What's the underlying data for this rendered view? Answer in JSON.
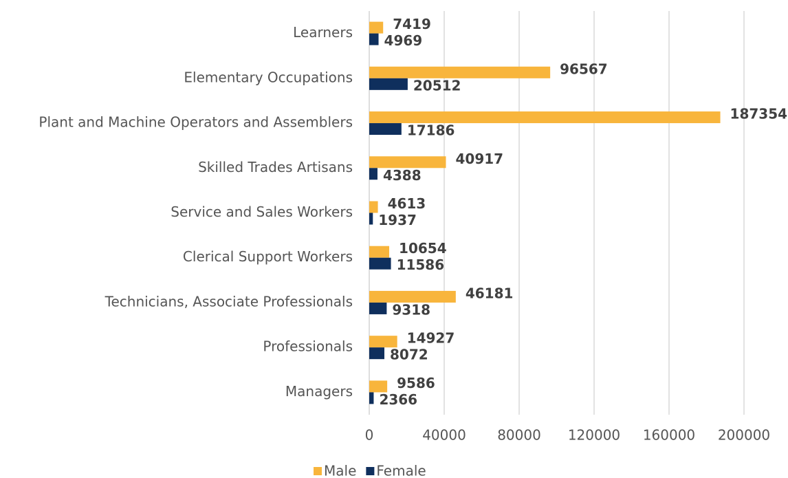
{
  "chart_data": {
    "type": "bar",
    "orientation": "horizontal",
    "categories": [
      "Learners",
      "Elementary Occupations",
      "Plant and Machine Operators and Assemblers",
      "Skilled Trades Artisans",
      "Service and Sales Workers",
      "Clerical Support Workers",
      "Technicians, Associate Professionals",
      "Professionals",
      "Managers"
    ],
    "series": [
      {
        "name": "Male",
        "color": "#f8b53c",
        "values": [
          7419,
          96567,
          187354,
          40917,
          4613,
          10654,
          46181,
          14927,
          9586
        ]
      },
      {
        "name": "Female",
        "color": "#0f2f5d",
        "values": [
          4969,
          20512,
          17186,
          4388,
          1937,
          11586,
          9318,
          8072,
          2366
        ]
      }
    ],
    "xlim": [
      0,
      200000
    ],
    "xticks": [
      0,
      40000,
      80000,
      120000,
      160000,
      200000
    ],
    "grid": true,
    "legend": "bottom"
  }
}
